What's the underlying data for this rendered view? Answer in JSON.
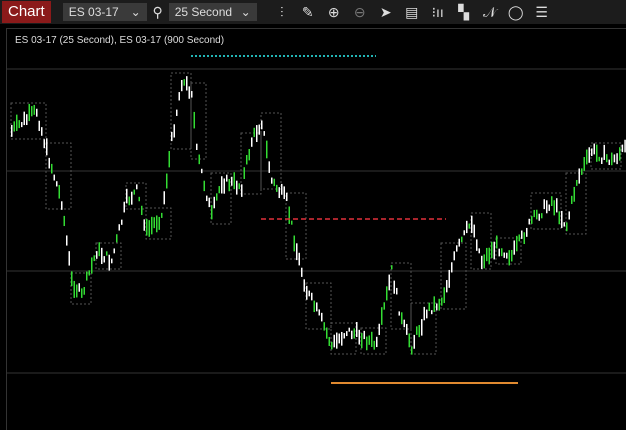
{
  "toolbar": {
    "tab": "Chart",
    "instrument": "ES 03-17",
    "interval": "25 Second",
    "icons": [
      "search-icon",
      "bar-type-icon",
      "pencil-icon",
      "zoom-in-icon",
      "zoom-out-icon",
      "pointer-icon",
      "data-box-icon",
      "chart-style-icon",
      "templates-icon",
      "strategy-icon",
      "refresh-icon",
      "list-icon"
    ]
  },
  "chart": {
    "title": "ES 03-17 (25 Second), ES 03-17 (900 Second)",
    "colors": {
      "up": "#33dd33",
      "down": "#ffffff",
      "high_line": "#22b5b5",
      "mid_line": "#e0303a",
      "low_line": "#e08a30",
      "grid": "#333333"
    }
  }
}
